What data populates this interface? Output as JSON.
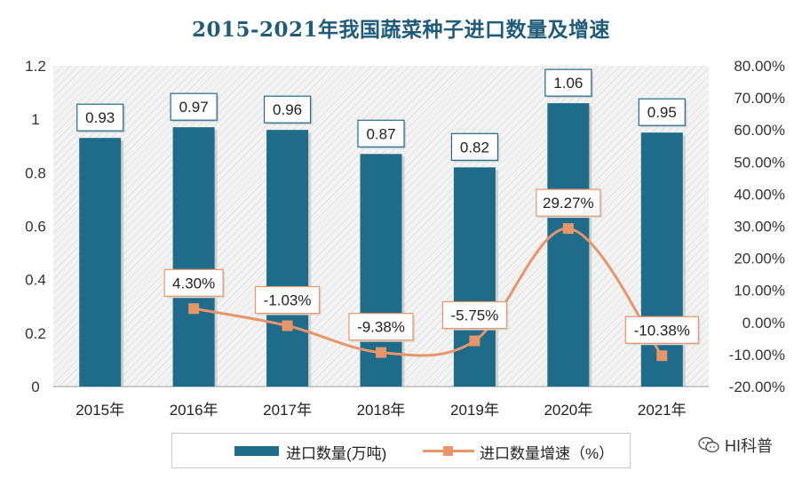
{
  "chart_data": {
    "type": "bar+line",
    "title": "2015-2021年我国蔬菜种子进口数量及增速",
    "categories": [
      "2015年",
      "2016年",
      "2017年",
      "2018年",
      "2019年",
      "2020年",
      "2021年"
    ],
    "series": [
      {
        "name": "进口数量(万吨)",
        "type": "bar",
        "axis": "left",
        "values": [
          0.93,
          0.97,
          0.96,
          0.87,
          0.82,
          1.06,
          0.95
        ],
        "labels": [
          "0.93",
          "0.97",
          "0.96",
          "0.87",
          "0.82",
          "1.06",
          "0.95"
        ],
        "color": "#1e6b8a"
      },
      {
        "name": "进口数量增速（%）",
        "type": "line",
        "axis": "right",
        "values": [
          null,
          4.3,
          -1.03,
          -9.38,
          -5.75,
          29.27,
          -10.38
        ],
        "labels": [
          "",
          "4.30%",
          "-1.03%",
          "-9.38%",
          "-5.75%",
          "29.27%",
          "-10.38%"
        ],
        "color": "#e8956a"
      }
    ],
    "left_axis": {
      "ylim": [
        0,
        1.2
      ],
      "ticks": [
        "0",
        "0.2",
        "0.4",
        "0.6",
        "0.8",
        "1",
        "1.2"
      ],
      "tick_values": [
        0,
        0.2,
        0.4,
        0.6,
        0.8,
        1.0,
        1.2
      ]
    },
    "right_axis": {
      "ylim": [
        -20,
        80
      ],
      "ticks": [
        "-20.00%",
        "-10.00%",
        "0.00%",
        "10.00%",
        "20.00%",
        "30.00%",
        "40.00%",
        "50.00%",
        "60.00%",
        "70.00%",
        "80.00%"
      ],
      "tick_values": [
        -20,
        -10,
        0,
        10,
        20,
        30,
        40,
        50,
        60,
        70,
        80
      ]
    },
    "legend": {
      "position": "bottom",
      "bar_label": "进口数量(万吨)",
      "line_label": "进口数量增速（%）"
    },
    "grid": false
  },
  "watermark": {
    "text": "HI科普",
    "icon": "wechat-icon"
  }
}
